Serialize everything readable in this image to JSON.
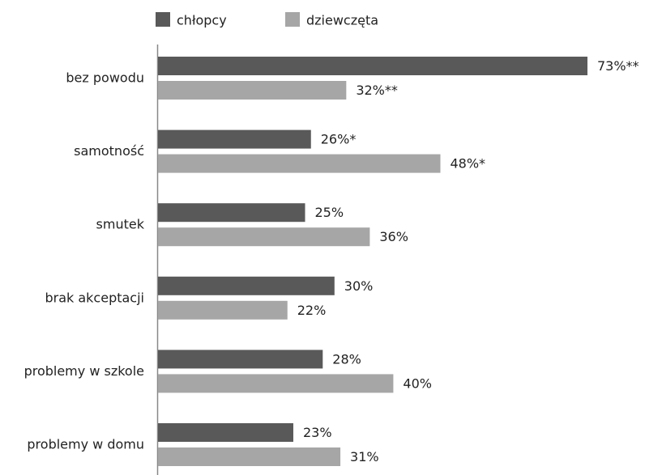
{
  "chart_data": {
    "type": "bar",
    "orientation": "horizontal",
    "categories": [
      "bez powodu",
      "samotność",
      "smutek",
      "brak akceptacji",
      "problemy w szkole",
      "problemy w domu"
    ],
    "series": [
      {
        "name": "chłopcy",
        "color": "#595959",
        "values": [
          73,
          26,
          25,
          30,
          28,
          23
        ],
        "value_labels": [
          "73%**",
          "26%*",
          "25%",
          "30%",
          "28%",
          "23%"
        ]
      },
      {
        "name": "dziewczęta",
        "color": "#a6a6a6",
        "values": [
          32,
          48,
          36,
          22,
          40,
          31
        ],
        "value_labels": [
          "32%**",
          "48%*",
          "36%",
          "22%",
          "40%",
          "31%"
        ]
      }
    ],
    "legend": "top"
  }
}
